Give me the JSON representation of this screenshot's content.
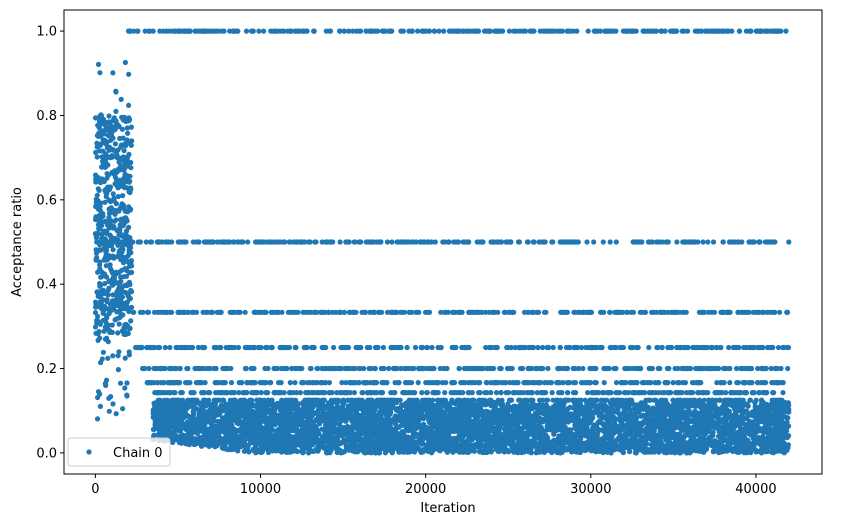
{
  "chart_data": {
    "type": "scatter",
    "xlabel": "Iteration",
    "ylabel": "Acceptance ratio",
    "xlim": [
      -1900,
      44000
    ],
    "ylim": [
      -0.05,
      1.05
    ],
    "xticks": [
      0,
      10000,
      20000,
      30000,
      40000
    ],
    "xtick_labels": [
      "0",
      "10000",
      "20000",
      "30000",
      "40000"
    ],
    "yticks": [
      0.0,
      0.2,
      0.4,
      0.6,
      0.8,
      1.0
    ],
    "ytick_labels": [
      "0.0",
      "0.2",
      "0.4",
      "0.6",
      "0.8",
      "1.0"
    ],
    "grid": false,
    "legend_position": "lower-left",
    "series": [
      {
        "name": "Chain 0",
        "color": "#1f77b4",
        "marker": "circle",
        "x_range": [
          0,
          42000
        ],
        "warmup_end": 2200,
        "warmup_value_range": [
          0.07,
          0.93
        ],
        "levels": [
          {
            "y": 1.0,
            "x_start": 2000,
            "x_end": 42000
          },
          {
            "y": 0.5,
            "x_start": 0,
            "x_end": 42000
          },
          {
            "y": 0.3333,
            "x_start": 2200,
            "x_end": 42000
          },
          {
            "y": 0.25,
            "x_start": 2400,
            "x_end": 42000
          },
          {
            "y": 0.2,
            "x_start": 2600,
            "x_end": 42000
          },
          {
            "y": 0.1667,
            "x_start": 3000,
            "x_end": 42000
          },
          {
            "y": 0.1429,
            "x_start": 3400,
            "x_end": 42000
          },
          {
            "y": 0.125,
            "x_start": 3800,
            "x_end": 42000
          }
        ],
        "dense_band": {
          "x_start": 3500,
          "x_end": 42000,
          "y_min": 0.0,
          "y_max": 0.12
        }
      }
    ]
  }
}
